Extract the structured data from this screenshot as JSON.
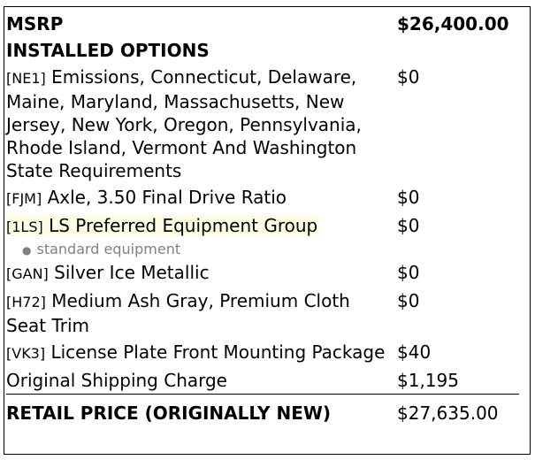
{
  "msrp": {
    "label": "MSRP",
    "value": "$26,400.00"
  },
  "installed_options_heading": "INSTALLED OPTIONS",
  "options": [
    {
      "code": "[NE1]",
      "name": "Emissions, Connecticut, Delaware, Maine, Maryland, Massachusetts, New Jersey, New York, Oregon, Pennsylvania, Rhode Island, Vermont And Washington State Requirements",
      "price": "$0"
    },
    {
      "code": "[FJM]",
      "name": "Axle, 3.50 Final Drive Ratio",
      "price": "$0"
    },
    {
      "code": "[1LS]",
      "name": "LS Preferred Equipment Group",
      "price": "$0",
      "highlighted": true,
      "sub_items": [
        "standard equipment"
      ]
    },
    {
      "code": "[GAN]",
      "name": "Silver Ice Metallic",
      "price": "$0"
    },
    {
      "code": "[H72]",
      "name": "Medium Ash Gray, Premium Cloth Seat Trim",
      "price": "$0"
    },
    {
      "code": "[VK3]",
      "name": "License Plate Front Mounting Package",
      "price": "$40"
    }
  ],
  "shipping": {
    "label": "Original Shipping Charge",
    "value": "$1,195"
  },
  "retail": {
    "label": "RETAIL PRICE (ORIGINALLY NEW)",
    "value": "$27,635.00"
  },
  "colors": {
    "highlight": "#fdfde3",
    "sub_text": "#808080"
  }
}
